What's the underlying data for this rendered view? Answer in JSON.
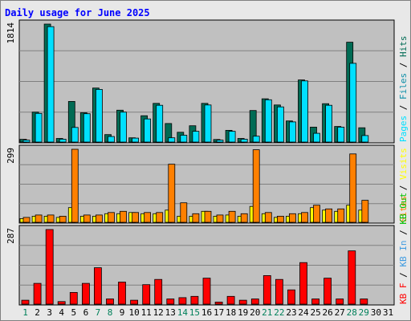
{
  "chart_data": {
    "type": "bar",
    "title": "Daily usage for June 2025",
    "categories": [
      "1",
      "2",
      "3",
      "4",
      "5",
      "6",
      "7",
      "8",
      "9",
      "10",
      "11",
      "12",
      "13",
      "14",
      "15",
      "16",
      "17",
      "18",
      "19",
      "20",
      "21",
      "22",
      "23",
      "24",
      "25",
      "26",
      "27",
      "28",
      "29",
      "30",
      "31"
    ],
    "weekend_days": [
      "1",
      "7",
      "8",
      "14",
      "15",
      "21",
      "22",
      "28",
      "29"
    ],
    "panels": [
      {
        "ymax_label": "1814",
        "ylim": [
          0,
          1814
        ],
        "series": [
          {
            "name": "Hits",
            "color": "#006b54",
            "values": [
              42,
              460,
              1814,
              55,
              625,
              450,
              830,
              115,
              490,
              65,
              405,
              595,
              285,
              150,
              250,
              595,
              40,
              180,
              55,
              485,
              665,
              570,
              325,
              955,
              230,
              590,
              240,
              1535,
              220,
              0,
              0
            ]
          },
          {
            "name": "Files",
            "color": "#0f8fa8",
            "values": [
              0,
              0,
              0,
              0,
              0,
              0,
              0,
              0,
              0,
              0,
              0,
              0,
              0,
              0,
              0,
              0,
              0,
              0,
              0,
              0,
              0,
              0,
              0,
              0,
              0,
              0,
              0,
              0,
              0,
              0,
              0
            ]
          },
          {
            "name": "Pages",
            "color": "#00e0ff",
            "values": [
              30,
              440,
              1775,
              45,
              225,
              435,
              810,
              85,
              460,
              60,
              355,
              565,
              65,
              105,
              165,
              570,
              30,
              165,
              45,
              90,
              650,
              540,
              310,
              940,
              135,
              565,
              230,
              1210,
              100,
              0,
              0
            ]
          }
        ],
        "legend": [
          {
            "label": "Pages",
            "color": "#00e0ff"
          },
          {
            "label": "Files",
            "color": "#0f8fa8"
          },
          {
            "label": "Hits",
            "color": "#006b54"
          }
        ]
      },
      {
        "ymax_label": "299",
        "ylim": [
          0,
          299
        ],
        "series": [
          {
            "name": "Visits",
            "color": "#ffff00",
            "values": [
              15,
              25,
              25,
              20,
              60,
              25,
              25,
              35,
              35,
              40,
              35,
              35,
              50,
              25,
              25,
              45,
              25,
              30,
              25,
              65,
              35,
              20,
              25,
              35,
              60,
              50,
              45,
              70,
              50,
              0,
              0
            ]
          },
          {
            "name": "Sites",
            "color": "#ff8000",
            "values": [
              20,
              30,
              30,
              25,
              299,
              30,
              30,
              40,
              45,
              40,
              40,
              40,
              238,
              80,
              35,
              45,
              30,
              45,
              35,
              297,
              40,
              25,
              35,
              40,
              70,
              55,
              55,
              280,
              90,
              0,
              0
            ]
          }
        ],
        "legend": [
          {
            "label": "Sites",
            "color": "#ff8000"
          },
          {
            "label": "Visits",
            "color": "#ffff00"
          }
        ]
      },
      {
        "ymax_label": "287",
        "ylim": [
          0,
          287
        ],
        "series": [
          {
            "name": "KB F",
            "color": "#ff0000",
            "values": [
              15,
              80,
              287,
              10,
              45,
              80,
              140,
              20,
              85,
              15,
              75,
              95,
              20,
              25,
              30,
              100,
              8,
              30,
              15,
              20,
              110,
              95,
              55,
              160,
              20,
              100,
              20,
              205,
              20,
              0,
              0
            ]
          }
        ],
        "legend": [
          {
            "label": "KB F",
            "color": "#ff0000"
          },
          {
            "label": "KB In",
            "color": "#3f9be0"
          },
          {
            "label": "KB Out",
            "color": "#00c000"
          }
        ]
      }
    ]
  }
}
